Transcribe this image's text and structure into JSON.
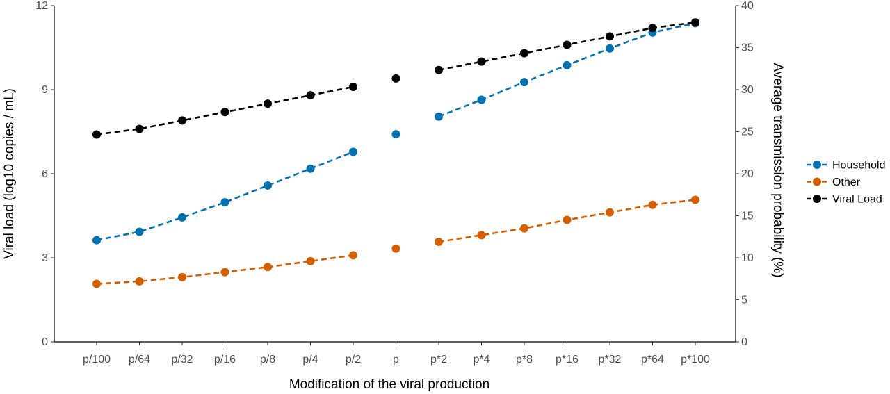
{
  "chart_data": {
    "type": "line",
    "title": "",
    "xlabel": "Modification of the viral production",
    "ylabel_left": "Viral load (log10 copies / mL)",
    "ylabel_right": "Average transmission probability (%)",
    "categories": [
      "p/100",
      "p/64",
      "p/32",
      "p/16",
      "p/8",
      "p/4",
      "p/2",
      "p",
      "p*2",
      "p*4",
      "p*8",
      "p*16",
      "p*32",
      "p*64",
      "p*100"
    ],
    "ylim_left": [
      0,
      12
    ],
    "yticks_left": [
      0,
      3,
      6,
      9,
      12
    ],
    "ylim_right": [
      0,
      40
    ],
    "yticks_right": [
      0,
      5,
      10,
      15,
      20,
      25,
      30,
      35,
      40
    ],
    "grid": false,
    "legend_position": "right",
    "gap_after_index": 6,
    "gap_before_index": 8,
    "series": [
      {
        "name": "Household",
        "axis": "right",
        "color": "#0072B2",
        "values": [
          12.1,
          13.1,
          14.8,
          16.6,
          18.6,
          20.6,
          22.6,
          24.7,
          26.8,
          28.8,
          30.9,
          32.9,
          34.9,
          36.8,
          37.9
        ]
      },
      {
        "name": "Other",
        "axis": "right",
        "color": "#D55E00",
        "values": [
          6.9,
          7.2,
          7.7,
          8.3,
          8.9,
          9.6,
          10.3,
          11.1,
          11.9,
          12.7,
          13.5,
          14.5,
          15.4,
          16.3,
          16.9
        ]
      },
      {
        "name": "Viral Load",
        "axis": "left",
        "color": "#000000",
        "values": [
          7.4,
          7.6,
          7.9,
          8.2,
          8.5,
          8.8,
          9.1,
          9.4,
          9.7,
          10.0,
          10.3,
          10.6,
          10.9,
          11.2,
          11.4
        ]
      }
    ]
  }
}
